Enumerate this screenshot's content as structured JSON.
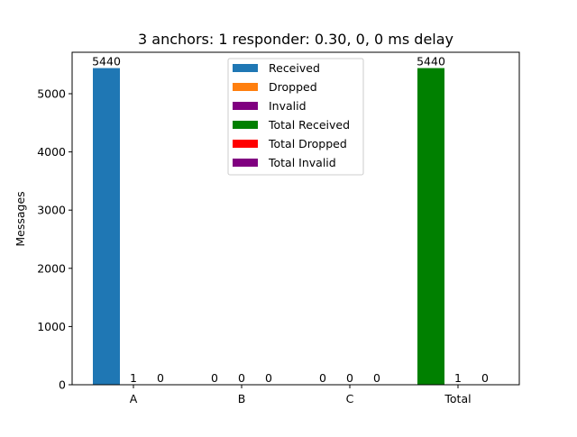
{
  "chart_data": {
    "type": "bar",
    "title": "3 anchors: 1 responder: 0.30, 0, 0 ms delay",
    "xlabel": "",
    "ylabel": "Messages",
    "ylim": [
      0,
      5712
    ],
    "yticks": [
      0,
      1000,
      2000,
      3000,
      4000,
      5000
    ],
    "categories": [
      "A",
      "B",
      "C",
      "Total"
    ],
    "grid": false,
    "legend_position": "top-center",
    "series": [
      {
        "name": "Received",
        "color": "#1f77b4",
        "values": [
          5440,
          0,
          0,
          null
        ]
      },
      {
        "name": "Dropped",
        "color": "#ff7f0e",
        "values": [
          1,
          0,
          0,
          null
        ]
      },
      {
        "name": "Invalid",
        "color": "#800080",
        "values": [
          0,
          0,
          0,
          null
        ]
      },
      {
        "name": "Total Received",
        "color": "#008000",
        "values": [
          null,
          null,
          null,
          5440
        ]
      },
      {
        "name": "Total Dropped",
        "color": "#ff0000",
        "values": [
          null,
          null,
          null,
          1
        ]
      },
      {
        "name": "Total Invalid",
        "color": "#800080",
        "values": [
          null,
          null,
          null,
          0
        ]
      }
    ]
  }
}
